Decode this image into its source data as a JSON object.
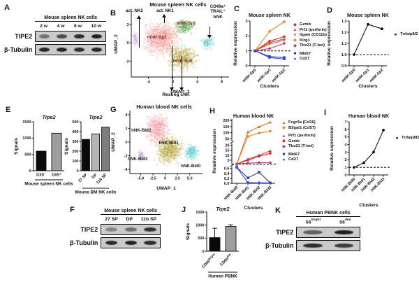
{
  "panel_labels": {
    "a": "A",
    "b": "B",
    "c": "C",
    "d": "D",
    "e": "E",
    "f": "F",
    "g": "G",
    "h": "H",
    "i": "I",
    "j": "J",
    "k": "K"
  },
  "blots": {
    "a": {
      "header": "Mouse spleen NK cells",
      "lanes": [
        "2 w",
        "4 w",
        "6 w",
        "10 w"
      ],
      "rows": [
        {
          "label": "TIPE2",
          "bands": [
            0.5,
            0.72,
            0.88,
            0.95
          ]
        },
        {
          "label": "β-Tubulin",
          "bands": [
            0.92,
            0.92,
            0.88,
            0.92
          ]
        }
      ]
    },
    "f": {
      "header": "Mouse spleen NK cells",
      "lanes": [
        "27 SP",
        "DP",
        "11b SP"
      ],
      "rows": [
        {
          "label": "TIPE2",
          "bands": [
            0.38,
            0.5,
            0.85
          ]
        },
        {
          "label": "β-Tubulin",
          "bands": [
            0.9,
            0.95,
            0.88
          ]
        }
      ]
    },
    "k": {
      "header": "Human PBNK cells",
      "lanes": [
        {
          "base": "56",
          "sup": "bright"
        },
        {
          "base": "56",
          "sup": "dim"
        }
      ],
      "rows": [
        {
          "label": "TIPE2",
          "bands": [
            0.6,
            0.95
          ]
        },
        {
          "label": "β-Tubulin",
          "bands": [
            0.88,
            0.8
          ]
        }
      ]
    }
  },
  "chart_data": [
    {
      "id": "umap_mouse",
      "type": "scatter",
      "title": "Mouse spleen NK cells",
      "xlabel": "UMAP_1",
      "ylabel": "UMAP_2",
      "xlim": [
        -6.8,
        9.2
      ],
      "ylim": [
        -5.6,
        5.2
      ],
      "xticks": [
        -4,
        0,
        4,
        8
      ],
      "yticks": [
        3,
        0,
        -3
      ],
      "label_color": "#7b2d1e",
      "clusters": [
        {
          "name": "mNK-Sp2",
          "color": "#f2948e",
          "cx": -1.9,
          "cy": 0.7,
          "rx": 2.7,
          "ry": 2.5,
          "n": 1100,
          "label_x": -4.2,
          "label_y": 0.8
        },
        {
          "name": "mNK-Sp1",
          "color": "#56a44e",
          "cx": 1.9,
          "cy": 2.7,
          "rx": 1.5,
          "ry": 1.0,
          "n": 300,
          "label_x": 0.6,
          "label_y": 3.1
        },
        {
          "name": "mNK-Sp0",
          "color": "#b4a43c",
          "cx": 1.5,
          "cy": -2.4,
          "rx": 2.2,
          "ry": 1.9,
          "n": 650,
          "label_x": 0.0,
          "label_y": -3.1
        },
        {
          "name": "",
          "color": "#4cc2c6",
          "cx": 5.7,
          "cy": 0.0,
          "rx": 1.1,
          "ry": 1.0,
          "n": 140
        },
        {
          "name": "",
          "color": "#c08cd0",
          "cx": -6.1,
          "cy": 0.6,
          "rx": 0.45,
          "ry": 1.1,
          "n": 70
        }
      ],
      "annotations": {
        "top_left": "act. NK2",
        "top_mid": "act. NK1",
        "right": "CD49a⁺\nTRAIL⁺\ntrNK",
        "bottom": "Resting cNK"
      }
    },
    {
      "id": "chart_c",
      "type": "line",
      "title": "Mouse spleen NK",
      "ylabel": "Relative expression",
      "xlabel": "Clusters",
      "categories": [
        "mNK-Sp0",
        "mNK-Sp1",
        "mNK-Sp2"
      ],
      "ylim": [
        0,
        3
      ],
      "yticks": [
        0,
        1,
        2,
        3
      ],
      "dashed_y": 1,
      "series": [
        {
          "name": "Gzmb",
          "color": "#d5282a",
          "marker": "d",
          "values": [
            1,
            1.65,
            1.95
          ]
        },
        {
          "name": "Prf1 (perforin)",
          "color": "#c44a50",
          "marker": "^",
          "values": [
            1,
            1.55,
            1.8
          ]
        },
        {
          "name": "Itgam (CD11b)",
          "color": "#e2702d",
          "marker": "v",
          "values": [
            1,
            1.45,
            1.72
          ]
        },
        {
          "name": "Klrg1",
          "color": "#ef8426",
          "marker": "d",
          "values": [
            1,
            2.3,
            2.95
          ]
        },
        {
          "name": "Tbx21 (T-bet)",
          "color": "#ae3a78",
          "marker": "d",
          "values": [
            1,
            1.15,
            1.5
          ]
        },
        {
          "name": "Mki67",
          "color": "#3636ad",
          "marker": "s",
          "values": [
            1,
            0.62,
            0.55
          ]
        },
        {
          "name": "Cd27",
          "color": "#2b50c8",
          "marker": "o",
          "values": [
            1,
            0.55,
            0.45
          ]
        }
      ],
      "legend_groups": [
        [
          0,
          1,
          2,
          3,
          4
        ],
        [
          5,
          6
        ]
      ]
    },
    {
      "id": "chart_d",
      "type": "line",
      "title": "Mouse spleen NK",
      "ylabel": "Relative expression",
      "xlabel": "Clusters",
      "categories": [
        "mNK-Sp0",
        "mNK-Sp1",
        "mNK-Sp2"
      ],
      "ylim": [
        0.9,
        1.3
      ],
      "yticks": [
        0.9,
        1.0,
        1.1,
        1.2,
        1.3
      ],
      "ytick_labels": [
        "0.9",
        "1.0",
        "1.1",
        "1.2",
        "1.3"
      ],
      "dashed_y": 1.0,
      "series": [
        {
          "name": "Tnfaip8l2",
          "color": "#111111",
          "marker": "o",
          "values": [
            1.0,
            1.27,
            1.23
          ]
        }
      ],
      "legend_groups": [
        [
          0
        ]
      ]
    },
    {
      "id": "bar_e1",
      "type": "bar",
      "title": "Tipe2",
      "ylabel": "Signals",
      "xlabel": "Mouse spleen NK cells",
      "categories": [
        "DX5⁻",
        "DX5⁺"
      ],
      "values": [
        600,
        1150
      ],
      "colors": [
        "#0a0a0a",
        "#9e9e9e"
      ],
      "ylim": [
        0,
        1500
      ],
      "yticks": [
        0,
        500,
        1000,
        1500
      ],
      "rotate": 0
    },
    {
      "id": "bar_e2",
      "type": "bar",
      "title": "Tipe2",
      "ylabel": "Signals",
      "xlabel": "Mouse BM NK cells",
      "categories": [
        "27 SP",
        "DP",
        "11b SP"
      ],
      "values": [
        320,
        375,
        445
      ],
      "colors": [
        "#0a0a0a",
        "#b5b5b5",
        "#7d7d7d"
      ],
      "ylim": [
        0,
        500
      ],
      "yticks": [
        0,
        100,
        200,
        300,
        400,
        500
      ],
      "rotate": 45
    },
    {
      "id": "umap_human",
      "type": "scatter",
      "title": "Human blood NK cells",
      "xlabel": "UMAP_1",
      "ylabel": "UMAP_2",
      "xlim": [
        -7.2,
        7.6
      ],
      "ylim": [
        -4.6,
        4.6
      ],
      "xticks": [
        -5,
        -2.5,
        0,
        2.5,
        5
      ],
      "xtick_labels": [
        "-5.0",
        "-2.5",
        "0",
        "2.5",
        "5.0"
      ],
      "yticks": [
        4,
        2,
        0,
        -2,
        -4
      ],
      "label_color": "#1a1a1a",
      "clusters": [
        {
          "name": "hNK-Bld2",
          "color": "#f2a0aa",
          "cx": -1.6,
          "cy": 1.9,
          "rx": 2.1,
          "ry": 2.0,
          "n": 750,
          "label_x": -6.9,
          "label_y": 1.6
        },
        {
          "name": "hNK-Bld1",
          "color": "#b4a43c",
          "cx": 0.8,
          "cy": -1.1,
          "rx": 2.5,
          "ry": 1.9,
          "n": 800,
          "label_x": -1.3,
          "label_y": -0.2
        },
        {
          "name": "hNK-Bld3",
          "color": "#b088d8",
          "cx": -4.9,
          "cy": -1.9,
          "rx": 0.6,
          "ry": 0.7,
          "n": 70,
          "label_x": -7.6,
          "label_y": -2.6
        },
        {
          "name": "hNK-Bld0",
          "color": "#4cc2c6",
          "cx": 5.3,
          "cy": -1.5,
          "rx": 1.3,
          "ry": 1.1,
          "n": 220,
          "label_x": 3.2,
          "label_y": -3.6
        }
      ],
      "annotations": {}
    },
    {
      "id": "chart_h",
      "type": "line",
      "title": "Human blood NK",
      "ylabel": "Relative expression",
      "xlabel": "Clusters",
      "categories": [
        "hNK-Bld0",
        "hNK-Bld1",
        "hNK-Bld2",
        "hNK-Bld3"
      ],
      "segments": [
        {
          "min": 0,
          "max": 0.68,
          "ticks": [
            0,
            0.2,
            0.4,
            0.6
          ],
          "tick_labels": [
            "0.0",
            "0.2",
            "0.4",
            "0.6"
          ],
          "h": 24
        },
        {
          "min": 0.68,
          "max": 22,
          "ticks": [
            5,
            10,
            15,
            20
          ],
          "h": 30
        },
        {
          "min": 30,
          "max": 212,
          "ticks": [
            50,
            100,
            150,
            200
          ],
          "h": 32
        }
      ],
      "dashed_y": 1,
      "series": [
        {
          "name": "Fcgr3a (Cd16)",
          "color": "#e2702d",
          "marker": "^",
          "values": [
            1,
            105,
            148,
            185
          ]
        },
        {
          "name": "B3gat1 (Cd57)",
          "color": "#ef8426",
          "marker": "d",
          "values": [
            1,
            70,
            97,
            113
          ]
        },
        {
          "name": "Prf1 (perforin)",
          "color": "#c44a50",
          "marker": "^",
          "values": [
            1,
            6,
            10,
            14.5
          ]
        },
        {
          "name": "Gzmb",
          "color": "#d5282a",
          "marker": "d",
          "values": [
            1,
            5,
            9,
            12
          ]
        },
        {
          "name": "Tbx21 (T-bet)",
          "color": "#ae3a78",
          "marker": "d",
          "values": [
            1,
            2,
            2.5,
            2.4
          ]
        },
        {
          "name": "Mki67",
          "color": "#3636ad",
          "marker": "s",
          "values": [
            0.65,
            0.22,
            0.45,
            0.02
          ]
        },
        {
          "name": "Cd27",
          "color": "#2b50c8",
          "marker": "o",
          "values": [
            0.65,
            0.03,
            0.02,
            0.02
          ]
        }
      ],
      "legend_groups": [
        [
          0,
          1
        ],
        [
          2,
          3,
          4
        ],
        [
          5,
          6
        ]
      ]
    },
    {
      "id": "chart_i",
      "type": "line",
      "title": "Human blood NK",
      "ylabel": "Relative expression",
      "xlabel": "Clusters",
      "categories": [
        "hNK-Bld0",
        "hNK-Bld1",
        "hNK-Bld2",
        "hNK-Bld3"
      ],
      "ylim": [
        0,
        7
      ],
      "yticks": [
        0,
        1,
        2,
        3,
        4,
        5,
        6,
        7
      ],
      "dashed_y": 1,
      "series": [
        {
          "name": "Tnfaip8l2",
          "color": "#111111",
          "marker": "o",
          "values": [
            1.0,
            1.6,
            3.0,
            5.9
          ]
        }
      ],
      "legend_groups": [
        [
          0
        ]
      ]
    },
    {
      "id": "bar_j",
      "type": "bar",
      "title": "Tipe2",
      "ylabel": "Signals",
      "xlabel": "Human PBNK",
      "categories": [
        {
          "base": "CD56",
          "sup": "bright"
        },
        {
          "base": "CD56",
          "sup": "dim"
        }
      ],
      "values": [
        520,
        950
      ],
      "errors": [
        360,
        60
      ],
      "colors": [
        "#0a0a0a",
        "#9e9e9e"
      ],
      "ylim": [
        0,
        1500
      ],
      "yticks": [
        0,
        500,
        1000,
        1500
      ],
      "rotate": 45
    }
  ]
}
